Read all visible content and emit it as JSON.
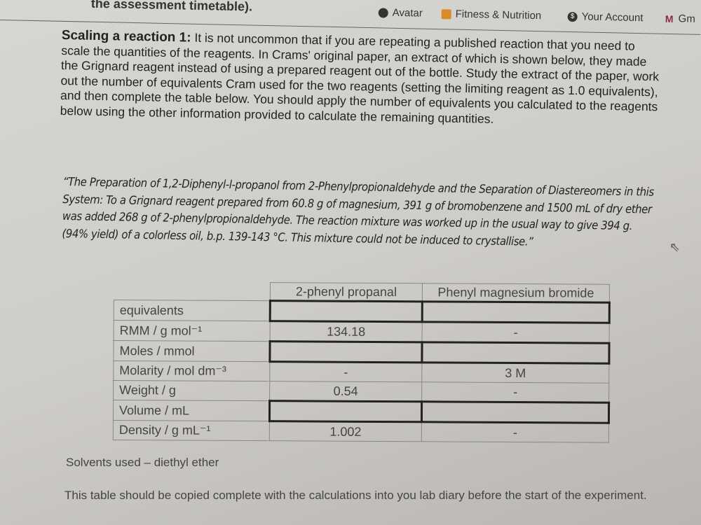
{
  "browser": {
    "heading_fragment": "the assessment timetable).",
    "bookmarks": [
      {
        "label": "Avatar",
        "icon": "avatar-icon"
      },
      {
        "label": "Fitness & Nutrition",
        "icon": "bookmark-folder-icon"
      },
      {
        "label": "Your Account",
        "icon": "account-icon"
      },
      {
        "label": "Gm",
        "icon": "gmail-icon"
      }
    ]
  },
  "intro": {
    "title": "Scaling a reaction 1:",
    "body": "It is not uncommon that if you are repeating a published reaction that you need to scale the quantities of the reagents. In Crams' original paper, an extract of which is shown below, they made the Grignard reagent instead of using a prepared reagent out of the bottle. Study the extract of the paper, work out the number of equivalents Cram used for the two reagents (setting the limiting reagent as 1.0 equivalents), and then complete the table below. You should apply the number of equivalents you calculated to the reagents below using the other information provided to calculate the remaining quantities."
  },
  "quote": "“The Preparation of 1,2-Diphenyl-l-propanol from 2-Phenylpropionaldehyde and the Separation of Diastereomers in this System: To a Grignard reagent prepared from 60.8 g of magnesium, 391 g of bromobenzene and 1500 mL of dry ether was added 268 g of 2-phenylpropionaldehyde. The reaction mixture was worked up in the usual way to give 394 g. (94% yield) of a colorless oil, b.p. 139-143 °C. This mixture could not be induced to crystallise.”",
  "table": {
    "headers": [
      "",
      "2-phenyl propanal",
      "Phenyl magnesium bromide"
    ],
    "rows": [
      {
        "label": "equivalents",
        "v1": "",
        "v2": "",
        "e1": true,
        "e2": true
      },
      {
        "label": "RMM / g mol⁻¹",
        "v1": "134.18",
        "v2": "-",
        "e1": false,
        "e2": false
      },
      {
        "label": "Moles / mmol",
        "v1": "",
        "v2": "",
        "e1": true,
        "e2": true
      },
      {
        "label": "Molarity / mol dm⁻³",
        "v1": "-",
        "v2": "3 M",
        "e1": false,
        "e2": false
      },
      {
        "label": "Weight / g",
        "v1": "0.54",
        "v2": "-",
        "e1": false,
        "e2": false
      },
      {
        "label": "Volume / mL",
        "v1": "",
        "v2": "",
        "e1": true,
        "e2": true
      },
      {
        "label": "Density / g mL⁻¹",
        "v1": "1.002",
        "v2": "-",
        "e1": false,
        "e2": false
      }
    ]
  },
  "solvents": "Solvents used – diethyl ether",
  "note": "This table should be copied complete with the calculations into you lab diary before the start of the experiment."
}
